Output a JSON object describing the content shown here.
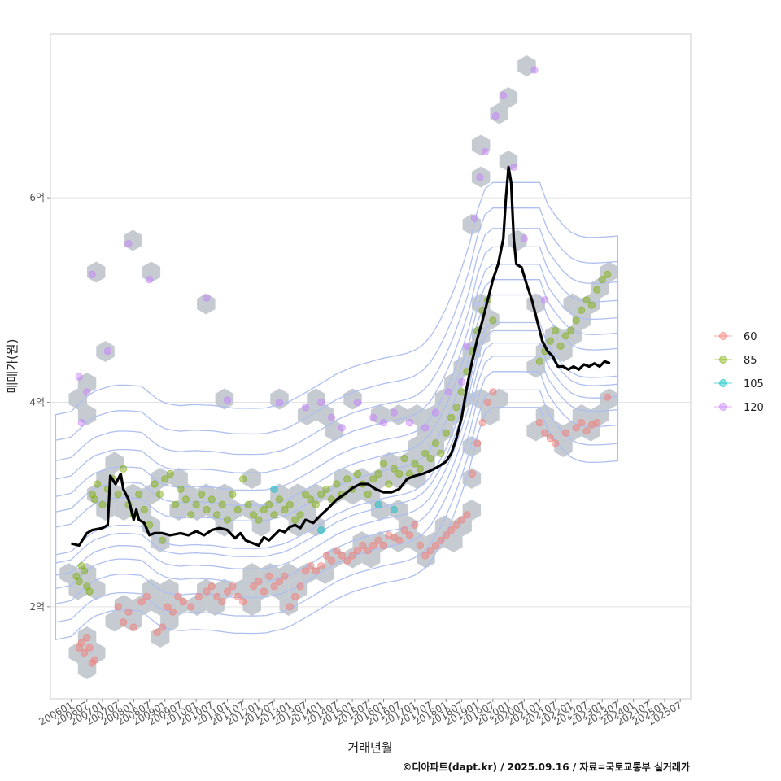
{
  "chart_data": {
    "type": "scatter",
    "xlabel": "거래년월",
    "ylabel": "매매가(원)",
    "caption": "©디아파트(dapt.kr) / 2025.09.16 / 자료=국토교통부 실거래가",
    "y_unit": "억",
    "ylim": [
      1.1,
      7.6
    ],
    "xlim": [
      -8,
      238
    ],
    "y_ticks": [
      {
        "value": 2,
        "label": "2억"
      },
      {
        "value": 4,
        "label": "4억"
      },
      {
        "value": 6,
        "label": "6억"
      }
    ],
    "x_ticks": [
      "200601",
      "200607",
      "200701",
      "200707",
      "200801",
      "200807",
      "200901",
      "200907",
      "201001",
      "201007",
      "201101",
      "201107",
      "201201",
      "201207",
      "201301",
      "201307",
      "201401",
      "201407",
      "201501",
      "201507",
      "201601",
      "201607",
      "201701",
      "201707",
      "201801",
      "201807",
      "201901",
      "201907",
      "202001",
      "202007",
      "202101",
      "202107",
      "202201",
      "202207",
      "202301",
      "202307",
      "202401",
      "202407",
      "202501",
      "202507"
    ],
    "legend": {
      "placement": "right",
      "entries": [
        {
          "label": "60",
          "color": "#F8766D"
        },
        {
          "label": "85",
          "color": "#7CAE00"
        },
        {
          "label": "105",
          "color": "#00BFC4"
        },
        {
          "label": "120",
          "color": "#C77CFF"
        }
      ]
    },
    "median_line": {
      "color": "#000000",
      "points": [
        [
          0,
          2.62
        ],
        [
          3,
          2.6
        ],
        [
          6,
          2.72
        ],
        [
          8,
          2.75
        ],
        [
          12,
          2.77
        ],
        [
          14,
          2.8
        ],
        [
          15,
          3.28
        ],
        [
          17,
          3.2
        ],
        [
          19,
          3.3
        ],
        [
          20,
          3.15
        ],
        [
          22,
          3.05
        ],
        [
          24,
          2.85
        ],
        [
          25,
          2.95
        ],
        [
          26,
          2.85
        ],
        [
          28,
          2.82
        ],
        [
          30,
          2.7
        ],
        [
          32,
          2.72
        ],
        [
          35,
          2.72
        ],
        [
          38,
          2.7
        ],
        [
          42,
          2.72
        ],
        [
          45,
          2.7
        ],
        [
          48,
          2.74
        ],
        [
          51,
          2.7
        ],
        [
          54,
          2.75
        ],
        [
          57,
          2.77
        ],
        [
          60,
          2.75
        ],
        [
          63,
          2.67
        ],
        [
          65,
          2.72
        ],
        [
          67,
          2.65
        ],
        [
          69,
          2.63
        ],
        [
          72,
          2.6
        ],
        [
          74,
          2.68
        ],
        [
          76,
          2.65
        ],
        [
          78,
          2.7
        ],
        [
          80,
          2.75
        ],
        [
          82,
          2.73
        ],
        [
          84,
          2.78
        ],
        [
          86,
          2.8
        ],
        [
          88,
          2.77
        ],
        [
          90,
          2.85
        ],
        [
          93,
          2.82
        ],
        [
          96,
          2.9
        ],
        [
          99,
          2.97
        ],
        [
          102,
          3.05
        ],
        [
          105,
          3.1
        ],
        [
          108,
          3.16
        ],
        [
          111,
          3.2
        ],
        [
          114,
          3.2
        ],
        [
          117,
          3.15
        ],
        [
          120,
          3.12
        ],
        [
          123,
          3.12
        ],
        [
          126,
          3.15
        ],
        [
          129,
          3.25
        ],
        [
          132,
          3.28
        ],
        [
          135,
          3.3
        ],
        [
          138,
          3.33
        ],
        [
          141,
          3.37
        ],
        [
          144,
          3.42
        ],
        [
          146,
          3.5
        ],
        [
          148,
          3.65
        ],
        [
          150,
          3.85
        ],
        [
          152,
          4.15
        ],
        [
          154,
          4.4
        ],
        [
          156,
          4.62
        ],
        [
          158,
          4.8
        ],
        [
          160,
          5.0
        ],
        [
          162,
          5.2
        ],
        [
          164,
          5.35
        ],
        [
          166,
          5.6
        ],
        [
          167,
          6.0
        ],
        [
          168,
          6.3
        ],
        [
          169,
          6.15
        ],
        [
          170,
          5.6
        ],
        [
          171,
          5.35
        ],
        [
          173,
          5.32
        ],
        [
          175,
          5.15
        ],
        [
          177,
          5.0
        ],
        [
          179,
          4.8
        ],
        [
          181,
          4.6
        ],
        [
          183,
          4.5
        ],
        [
          185,
          4.45
        ],
        [
          187,
          4.35
        ],
        [
          189,
          4.35
        ],
        [
          191,
          4.32
        ],
        [
          193,
          4.35
        ],
        [
          195,
          4.32
        ],
        [
          197,
          4.37
        ],
        [
          199,
          4.35
        ],
        [
          201,
          4.38
        ],
        [
          203,
          4.35
        ],
        [
          205,
          4.4
        ],
        [
          207,
          4.38
        ]
      ]
    },
    "series": [
      {
        "name": "60",
        "points": [
          [
            3,
            1.6
          ],
          [
            4,
            1.65
          ],
          [
            5,
            1.55
          ],
          [
            6,
            1.7
          ],
          [
            7,
            1.6
          ],
          [
            8,
            1.45
          ],
          [
            9,
            1.48
          ],
          [
            18,
            2.0
          ],
          [
            20,
            1.85
          ],
          [
            22,
            1.95
          ],
          [
            24,
            1.8
          ],
          [
            27,
            2.05
          ],
          [
            29,
            2.1
          ],
          [
            33,
            1.75
          ],
          [
            35,
            1.8
          ],
          [
            37,
            2.0
          ],
          [
            39,
            1.95
          ],
          [
            41,
            2.1
          ],
          [
            43,
            2.05
          ],
          [
            46,
            2.0
          ],
          [
            49,
            2.1
          ],
          [
            52,
            2.15
          ],
          [
            54,
            2.2
          ],
          [
            56,
            2.1
          ],
          [
            58,
            2.05
          ],
          [
            60,
            2.15
          ],
          [
            62,
            2.2
          ],
          [
            64,
            2.1
          ],
          [
            66,
            2.05
          ],
          [
            70,
            2.2
          ],
          [
            72,
            2.25
          ],
          [
            74,
            2.15
          ],
          [
            76,
            2.3
          ],
          [
            78,
            2.2
          ],
          [
            80,
            2.25
          ],
          [
            82,
            2.3
          ],
          [
            84,
            2.0
          ],
          [
            86,
            2.1
          ],
          [
            88,
            2.2
          ],
          [
            90,
            2.35
          ],
          [
            92,
            2.4
          ],
          [
            94,
            2.35
          ],
          [
            96,
            2.4
          ],
          [
            98,
            2.5
          ],
          [
            100,
            2.45
          ],
          [
            102,
            2.55
          ],
          [
            104,
            2.5
          ],
          [
            106,
            2.45
          ],
          [
            108,
            2.5
          ],
          [
            110,
            2.55
          ],
          [
            112,
            2.6
          ],
          [
            114,
            2.55
          ],
          [
            116,
            2.6
          ],
          [
            118,
            2.65
          ],
          [
            120,
            2.6
          ],
          [
            122,
            2.7
          ],
          [
            124,
            2.68
          ],
          [
            126,
            2.65
          ],
          [
            128,
            2.75
          ],
          [
            130,
            2.7
          ],
          [
            132,
            2.8
          ],
          [
            134,
            2.6
          ],
          [
            136,
            2.5
          ],
          [
            138,
            2.55
          ],
          [
            140,
            2.6
          ],
          [
            142,
            2.65
          ],
          [
            144,
            2.7
          ],
          [
            146,
            2.75
          ],
          [
            148,
            2.8
          ],
          [
            150,
            2.85
          ],
          [
            152,
            2.9
          ],
          [
            154,
            3.3
          ],
          [
            156,
            3.6
          ],
          [
            158,
            3.8
          ],
          [
            160,
            4.0
          ],
          [
            162,
            4.1
          ],
          [
            180,
            3.8
          ],
          [
            182,
            3.7
          ],
          [
            184,
            3.65
          ],
          [
            186,
            3.6
          ],
          [
            190,
            3.7
          ],
          [
            194,
            3.75
          ],
          [
            196,
            3.8
          ],
          [
            198,
            3.72
          ],
          [
            200,
            3.78
          ],
          [
            202,
            3.8
          ],
          [
            206,
            4.05
          ]
        ]
      },
      {
        "name": "85",
        "points": [
          [
            2,
            2.3
          ],
          [
            3,
            2.25
          ],
          [
            4,
            2.4
          ],
          [
            5,
            2.35
          ],
          [
            6,
            2.2
          ],
          [
            7,
            2.15
          ],
          [
            8,
            3.1
          ],
          [
            9,
            3.05
          ],
          [
            10,
            3.2
          ],
          [
            12,
            3.0
          ],
          [
            14,
            3.15
          ],
          [
            16,
            3.25
          ],
          [
            18,
            3.1
          ],
          [
            20,
            3.35
          ],
          [
            22,
            3.0
          ],
          [
            24,
            2.9
          ],
          [
            26,
            3.1
          ],
          [
            28,
            2.95
          ],
          [
            30,
            2.8
          ],
          [
            32,
            3.2
          ],
          [
            34,
            3.1
          ],
          [
            35,
            2.65
          ],
          [
            36,
            3.25
          ],
          [
            38,
            3.3
          ],
          [
            40,
            3.0
          ],
          [
            42,
            3.15
          ],
          [
            44,
            3.05
          ],
          [
            46,
            2.9
          ],
          [
            48,
            3.0
          ],
          [
            50,
            3.1
          ],
          [
            52,
            2.95
          ],
          [
            54,
            3.05
          ],
          [
            56,
            2.9
          ],
          [
            58,
            3.0
          ],
          [
            60,
            2.85
          ],
          [
            62,
            3.1
          ],
          [
            64,
            2.95
          ],
          [
            66,
            3.25
          ],
          [
            68,
            3.0
          ],
          [
            70,
            2.9
          ],
          [
            72,
            2.85
          ],
          [
            74,
            2.95
          ],
          [
            76,
            3.0
          ],
          [
            78,
            2.9
          ],
          [
            80,
            3.05
          ],
          [
            82,
            2.95
          ],
          [
            84,
            3.0
          ],
          [
            86,
            2.85
          ],
          [
            88,
            2.9
          ],
          [
            90,
            3.1
          ],
          [
            92,
            3.05
          ],
          [
            94,
            3.0
          ],
          [
            96,
            3.1
          ],
          [
            98,
            3.15
          ],
          [
            100,
            3.05
          ],
          [
            102,
            3.2
          ],
          [
            104,
            3.1
          ],
          [
            106,
            3.25
          ],
          [
            108,
            3.15
          ],
          [
            110,
            3.3
          ],
          [
            112,
            3.2
          ],
          [
            114,
            3.1
          ],
          [
            116,
            3.25
          ],
          [
            118,
            3.3
          ],
          [
            120,
            3.4
          ],
          [
            122,
            3.2
          ],
          [
            124,
            3.35
          ],
          [
            126,
            3.3
          ],
          [
            128,
            3.45
          ],
          [
            130,
            3.3
          ],
          [
            132,
            3.4
          ],
          [
            134,
            3.35
          ],
          [
            136,
            3.5
          ],
          [
            138,
            3.45
          ],
          [
            140,
            3.6
          ],
          [
            142,
            3.5
          ],
          [
            144,
            3.7
          ],
          [
            146,
            3.85
          ],
          [
            148,
            3.95
          ],
          [
            150,
            4.1
          ],
          [
            152,
            4.3
          ],
          [
            154,
            4.5
          ],
          [
            156,
            4.7
          ],
          [
            158,
            4.9
          ],
          [
            160,
            5.0
          ],
          [
            162,
            4.8
          ],
          [
            180,
            4.4
          ],
          [
            182,
            4.5
          ],
          [
            184,
            4.6
          ],
          [
            186,
            4.7
          ],
          [
            188,
            4.55
          ],
          [
            190,
            4.65
          ],
          [
            192,
            4.7
          ],
          [
            194,
            4.8
          ],
          [
            196,
            4.9
          ],
          [
            198,
            5.0
          ],
          [
            200,
            4.95
          ],
          [
            202,
            5.1
          ],
          [
            204,
            5.2
          ],
          [
            206,
            5.25
          ]
        ]
      },
      {
        "name": "105",
        "points": [
          [
            78,
            3.15
          ],
          [
            96,
            2.75
          ],
          [
            118,
            3.0
          ],
          [
            124,
            2.95
          ]
        ]
      },
      {
        "name": "120",
        "points": [
          [
            3,
            4.25
          ],
          [
            4,
            3.8
          ],
          [
            6,
            4.1
          ],
          [
            8,
            5.25
          ],
          [
            14,
            4.5
          ],
          [
            22,
            5.55
          ],
          [
            30,
            5.2
          ],
          [
            52,
            5.02
          ],
          [
            60,
            4.02
          ],
          [
            80,
            4.0
          ],
          [
            90,
            3.95
          ],
          [
            96,
            4.0
          ],
          [
            100,
            3.85
          ],
          [
            104,
            3.75
          ],
          [
            110,
            4.0
          ],
          [
            116,
            3.85
          ],
          [
            120,
            3.8
          ],
          [
            124,
            3.9
          ],
          [
            130,
            3.8
          ],
          [
            136,
            3.75
          ],
          [
            140,
            3.9
          ],
          [
            145,
            4.1
          ],
          [
            150,
            4.2
          ],
          [
            152,
            4.55
          ],
          [
            155,
            5.8
          ],
          [
            157,
            6.2
          ],
          [
            159,
            6.45
          ],
          [
            163,
            6.8
          ],
          [
            166,
            7.0
          ],
          [
            170,
            6.3
          ],
          [
            174,
            5.6
          ],
          [
            178,
            7.25
          ],
          [
            182,
            5.0
          ]
        ]
      }
    ]
  }
}
